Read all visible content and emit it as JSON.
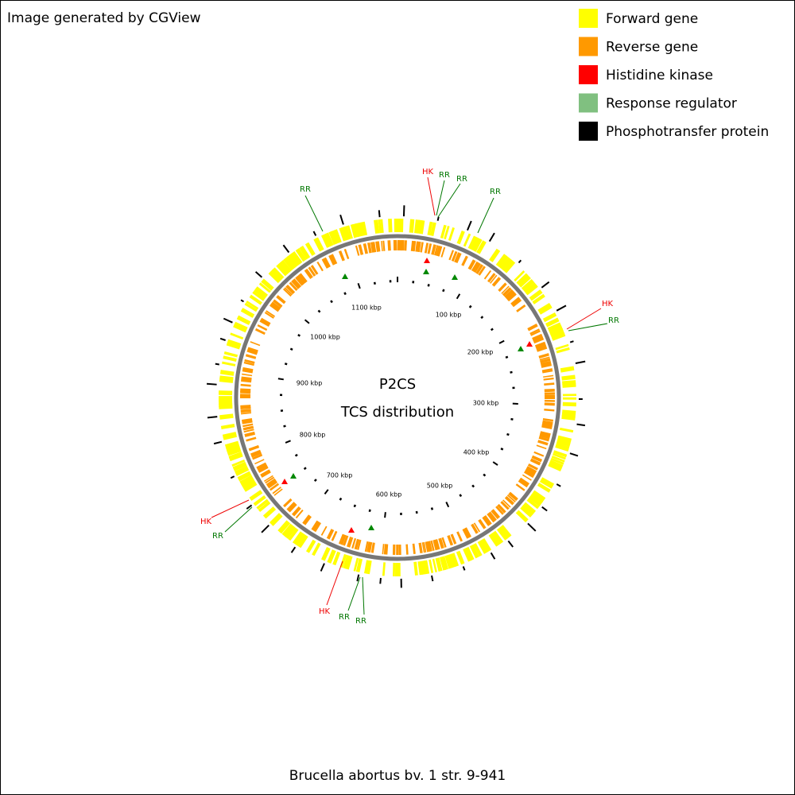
{
  "header": {
    "credit": "Image generated by CGView"
  },
  "legend": [
    {
      "label": "Forward gene",
      "color": "#ffff00"
    },
    {
      "label": "Reverse gene",
      "color": "#ff9900"
    },
    {
      "label": "Histidine kinase",
      "color": "#ff0000"
    },
    {
      "label": "Response regulator",
      "color": "#80c080"
    },
    {
      "label": "Phosphotransfer protein",
      "color": "#000000"
    }
  ],
  "center": {
    "title": "P2CS",
    "subtitle": "TCS distribution"
  },
  "scale_labels": [
    "100 kbp",
    "200 kbp",
    "300 kbp",
    "400 kbp",
    "500 kbp",
    "600 kbp",
    "700 kbp",
    "800 kbp",
    "900 kbp",
    "1000 kbp",
    "1100 kbp"
  ],
  "annotations": [
    {
      "label": "RR"
    },
    {
      "label": "HK"
    },
    {
      "label": "RR"
    },
    {
      "label": "RR"
    },
    {
      "label": "RR"
    },
    {
      "label": "HK"
    },
    {
      "label": "RR"
    },
    {
      "label": "HK"
    },
    {
      "label": "RR"
    },
    {
      "label": "HK"
    },
    {
      "label": "RR"
    },
    {
      "label": "RR"
    }
  ],
  "footer": "Brucella abortus bv. 1 str. 9-941"
}
